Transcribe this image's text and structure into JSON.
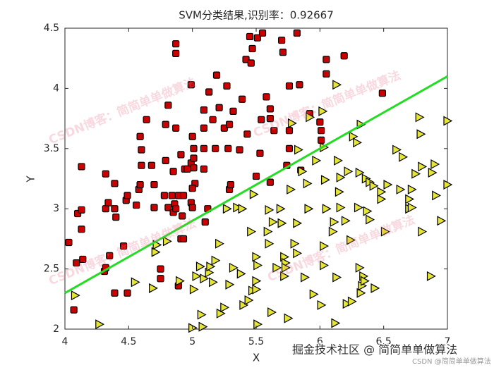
{
  "chart_data": {
    "type": "scatter",
    "title": "SVM分类结果,识别率：0.92667",
    "x_label": "X",
    "y_label": "Y",
    "xlim": [
      4,
      7
    ],
    "ylim": [
      2,
      4.5
    ],
    "xticks": [
      4,
      4.5,
      5,
      5.5,
      6,
      6.5,
      7
    ],
    "yticks": [
      2,
      2.5,
      3,
      3.5,
      4,
      4.5
    ],
    "grid": false,
    "series": [
      {
        "marker": "square",
        "color": "#cc0000",
        "x": [
          4.03,
          4.07,
          4.09,
          4.1,
          4.13,
          4.13,
          4.13,
          4.14,
          4.31,
          4.32,
          4.32,
          4.32,
          4.34,
          4.35,
          4.39,
          4.39,
          4.39,
          4.4,
          4.46,
          4.48,
          4.49,
          4.49,
          4.56,
          4.58,
          4.59,
          4.59,
          4.6,
          4.6,
          4.64,
          4.68,
          4.7,
          4.7,
          4.75,
          4.75,
          4.79,
          4.79,
          4.78,
          4.81,
          4.81,
          4.84,
          4.85,
          4.85,
          4.87,
          4.87,
          4.87,
          4.86,
          4.87,
          4.89,
          4.89,
          4.91,
          4.91,
          4.92,
          4.93,
          4.93,
          4.94,
          4.96,
          4.99,
          4.99,
          4.99,
          5.0,
          5.01,
          5.01,
          5.01,
          5.02,
          5.0,
          5.0,
          5.09,
          5.09,
          5.09,
          5.09,
          5.1,
          5.12,
          5.13,
          5.16,
          5.18,
          5.19,
          5.21,
          5.25,
          5.27,
          5.28,
          5.29,
          5.29,
          5.3,
          5.32,
          5.37,
          5.39,
          5.43,
          5.42,
          5.45,
          5.47,
          5.46,
          5.5,
          5.51,
          5.53,
          5.54,
          5.55,
          5.58,
          5.61,
          5.61,
          5.61,
          5.64,
          5.7,
          5.71,
          5.74,
          5.76,
          5.76,
          5.76,
          5.82,
          5.84,
          5.85,
          5.92,
          6.0,
          6.01,
          6.01,
          6.05,
          6.05,
          6.19,
          6.49
        ],
        "values": [
          2.72,
          2.16,
          2.55,
          2.96,
          2.99,
          3.35,
          2.83,
          2.58,
          2.48,
          2.51,
          3.0,
          3.29,
          3.05,
          2.61,
          2.3,
          3.0,
          3.21,
          2.93,
          2.69,
          3.07,
          2.3,
          3.11,
          3.03,
          3.16,
          3.2,
          3.6,
          3.49,
          3.36,
          3.74,
          3.36,
          3.2,
          3.01,
          2.42,
          2.5,
          3.4,
          3.7,
          3.11,
          3.86,
          3.01,
          3.11,
          3.31,
          2.97,
          3.67,
          4.37,
          4.29,
          3.04,
          3.0,
          2.36,
          3.11,
          3.45,
          2.75,
          2.94,
          2.75,
          3.11,
          3.33,
          3.33,
          4.03,
          3.38,
          3.05,
          3.6,
          3.5,
          3.42,
          3.34,
          3.21,
          3.17,
          3.01,
          3.82,
          3.67,
          3.5,
          3.33,
          2.89,
          3.0,
          3.97,
          3.74,
          3.5,
          4.11,
          3.84,
          3.67,
          4.02,
          3.5,
          3.16,
          3.7,
          3.2,
          3.81,
          3.49,
          3.91,
          3.62,
          4.24,
          4.43,
          4.33,
          4.21,
          3.27,
          4.42,
          3.46,
          3.74,
          4.46,
          3.93,
          3.83,
          3.75,
          3.22,
          3.65,
          4.4,
          4.3,
          3.36,
          3.65,
          3.5,
          4.02,
          4.46,
          4.03,
          3.32,
          3.79,
          3.72,
          3.65,
          3.57,
          4.24,
          4.12,
          4.27,
          3.96
        ]
      },
      {
        "marker": "triangle",
        "color": "#e6e632",
        "x": [
          4.08,
          4.27,
          4.55,
          4.69,
          4.71,
          4.72,
          4.8,
          4.9,
          5.0,
          5.01,
          5.03,
          5.06,
          5.07,
          5.08,
          5.09,
          5.13,
          5.14,
          5.16,
          5.18,
          5.21,
          5.22,
          5.25,
          5.27,
          5.29,
          5.32,
          5.35,
          5.38,
          5.39,
          5.4,
          5.44,
          5.46,
          5.47,
          5.48,
          5.5,
          5.5,
          5.51,
          5.5,
          5.51,
          5.6,
          5.59,
          5.6,
          5.62,
          5.63,
          5.66,
          5.69,
          5.7,
          5.72,
          5.72,
          5.73,
          5.73,
          5.75,
          5.77,
          5.78,
          5.8,
          5.82,
          5.82,
          5.83,
          5.86,
          5.88,
          5.9,
          5.91,
          5.92,
          5.95,
          5.97,
          6.01,
          6.02,
          6.03,
          6.03,
          6.03,
          6.04,
          6.05,
          6.1,
          6.11,
          6.12,
          6.13,
          6.13,
          6.14,
          6.15,
          6.16,
          6.16,
          6.2,
          6.21,
          6.22,
          6.24,
          6.25,
          6.26,
          6.29,
          6.3,
          6.31,
          6.31,
          6.32,
          6.32,
          6.33,
          6.34,
          6.35,
          6.36,
          6.37,
          6.39,
          6.39,
          6.42,
          6.43,
          6.48,
          6.48,
          6.51,
          6.53,
          6.6,
          6.63,
          6.65,
          6.7,
          6.7,
          6.72,
          6.72,
          6.75,
          6.78,
          6.79,
          6.8,
          6.8,
          6.87,
          6.88,
          6.9,
          6.91,
          6.95,
          7.0,
          7.0
        ],
        "values": [
          2.28,
          2.04,
          2.39,
          2.34,
          2.64,
          2.7,
          2.73,
          2.4,
          2.01,
          2.33,
          2.44,
          2.52,
          2.12,
          2.02,
          2.42,
          2.47,
          2.52,
          2.39,
          2.57,
          2.71,
          2.13,
          2.18,
          3.0,
          2.37,
          2.51,
          3.01,
          2.46,
          3.0,
          2.2,
          2.24,
          2.81,
          2.32,
          3.12,
          2.6,
          2.4,
          2.53,
          2.33,
          2.04,
          2.99,
          2.81,
          2.71,
          2.14,
          2.89,
          2.51,
          3.0,
          2.88,
          2.6,
          2.44,
          2.55,
          2.51,
          2.09,
          3.16,
          3.71,
          2.71,
          2.88,
          2.63,
          3.49,
          3.31,
          2.43,
          3.21,
          3.0,
          3.76,
          2.29,
          3.4,
          2.2,
          3.81,
          2.69,
          2.53,
          3.51,
          3.24,
          3.0,
          2.81,
          2.89,
          2.05,
          4.03,
          2.43,
          3.4,
          3.14,
          3.26,
          3.01,
          2.9,
          2.21,
          3.31,
          2.74,
          2.23,
          3.6,
          3.55,
          3.01,
          3.3,
          2.51,
          3.7,
          2.3,
          2.36,
          2.44,
          2.4,
          3.25,
          2.98,
          3.22,
          2.91,
          3.19,
          2.34,
          3.08,
          3.14,
          2.81,
          3.2,
          3.49,
          3.16,
          3.43,
          3.0,
          3.08,
          3.16,
          3.01,
          3.29,
          3.76,
          3.62,
          3.35,
          2.81,
          2.44,
          3.3,
          3.37,
          3.11,
          2.9,
          3.73,
          3.2
        ]
      },
      {
        "marker": "line",
        "color": "#22dd22",
        "x": [
          4,
          7
        ],
        "values": [
          2.3,
          4.1
        ]
      }
    ]
  },
  "watermarks": {
    "diagonal": "CSDN博客：简简单单做算法",
    "juejin": "掘金技术社区 @ 简简单单做算法",
    "csdn": "CSDN @简简单单做算法"
  }
}
